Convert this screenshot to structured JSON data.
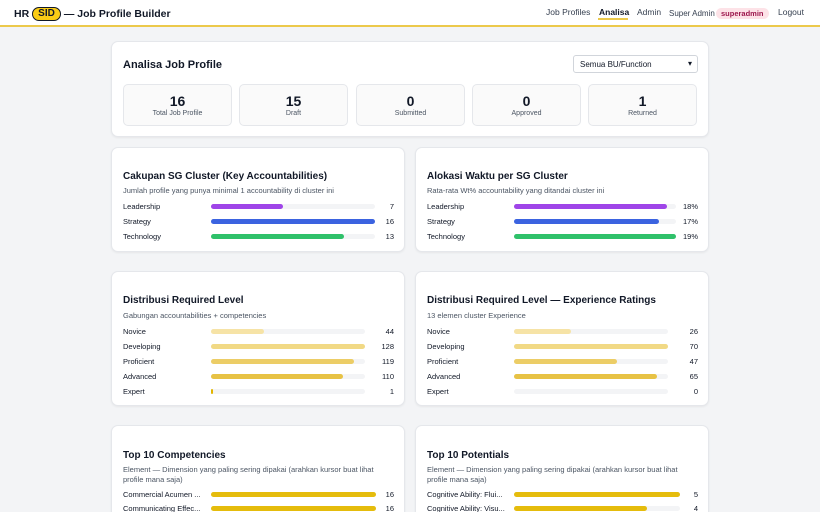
{
  "header": {
    "brand_pre": "HR",
    "brand_pill": "SID",
    "brand_post": "— Job Profile Builder",
    "nav": [
      {
        "label": "Job Profiles",
        "active": false
      },
      {
        "label": "Analisa",
        "active": true
      },
      {
        "label": "Admin",
        "active": false
      }
    ],
    "user_role": "Super Admin",
    "user_badge": "superadmin",
    "logout": "Logout",
    "accent": "#ecc94b"
  },
  "summary": {
    "title": "Analisa Job Profile",
    "filter": {
      "selected": "Semua BU/Function"
    },
    "stats": [
      {
        "value": "16",
        "label": "Total Job Profile"
      },
      {
        "value": "15",
        "label": "Draft"
      },
      {
        "value": "0",
        "label": "Submitted"
      },
      {
        "value": "0",
        "label": "Approved"
      },
      {
        "value": "1",
        "label": "Returned"
      }
    ]
  },
  "cards": {
    "cluster": {
      "title": "Cakupan SG Cluster (Key Accountabilities)",
      "subtitle": "Jumlah profile yang punya minimal 1 accountability di cluster ini",
      "max": 16,
      "rows": [
        {
          "label": "Leadership",
          "value": 7,
          "display": "7",
          "color": "#9f45e8"
        },
        {
          "label": "Strategy",
          "value": 16,
          "display": "16",
          "color": "#3b63e0"
        },
        {
          "label": "Technology",
          "value": 13,
          "display": "13",
          "color": "#2fc16a"
        }
      ]
    },
    "time": {
      "title": "Alokasi Waktu per SG Cluster",
      "subtitle": "Rata-rata Wt% accountability yang ditandai cluster ini",
      "max": 19,
      "rows": [
        {
          "label": "Leadership",
          "value": 18,
          "display": "18%",
          "color": "#9f45e8"
        },
        {
          "label": "Strategy",
          "value": 17,
          "display": "17%",
          "color": "#3b63e0"
        },
        {
          "label": "Technology",
          "value": 19,
          "display": "19%",
          "color": "#2fc16a"
        }
      ]
    },
    "level": {
      "title": "Distribusi Required Level",
      "subtitle": "Gabungan accountabilities + competencies",
      "max": 128,
      "rows": [
        {
          "label": "Novice",
          "value": 44,
          "display": "44",
          "color": "#f6e3a6"
        },
        {
          "label": "Developing",
          "value": 128,
          "display": "128",
          "color": "#f1d985"
        },
        {
          "label": "Proficient",
          "value": 119,
          "display": "119",
          "color": "#eccd66"
        },
        {
          "label": "Advanced",
          "value": 110,
          "display": "110",
          "color": "#e7c245"
        },
        {
          "label": "Expert",
          "value": 1,
          "display": "1",
          "color": "#e2b500"
        }
      ]
    },
    "exp": {
      "title": "Distribusi Required Level — Experience Ratings",
      "subtitle": "13 elemen cluster Experience",
      "max": 70,
      "rows": [
        {
          "label": "Novice",
          "value": 26,
          "display": "26",
          "color": "#f6e3a6"
        },
        {
          "label": "Developing",
          "value": 70,
          "display": "70",
          "color": "#f1d985"
        },
        {
          "label": "Proficient",
          "value": 47,
          "display": "47",
          "color": "#eccd66"
        },
        {
          "label": "Advanced",
          "value": 65,
          "display": "65",
          "color": "#e7c245"
        },
        {
          "label": "Expert",
          "value": 0,
          "display": "0",
          "color": "#e2b500"
        }
      ]
    },
    "comp": {
      "title": "Top 10 Competencies",
      "subtitle": "Element — Dimension yang paling sering dipakai (arahkan kursor buat lihat profile mana saja)",
      "max": 16,
      "rows": [
        {
          "label": "Commercial Acumen ...",
          "value": 16,
          "display": "16",
          "color": "#e5bc0c"
        },
        {
          "label": "Communicating Effec...",
          "value": 16,
          "display": "16",
          "color": "#e5bc0c"
        }
      ]
    },
    "pot": {
      "title": "Top 10 Potentials",
      "subtitle": "Element — Dimension yang paling sering dipakai (arahkan kursor buat lihat profile mana saja)",
      "max": 5,
      "rows": [
        {
          "label": "Cognitive Ability: Flui...",
          "value": 5,
          "display": "5",
          "color": "#e5bc0c"
        },
        {
          "label": "Cognitive Ability: Visu...",
          "value": 4,
          "display": "4",
          "color": "#e5bc0c"
        }
      ]
    }
  }
}
